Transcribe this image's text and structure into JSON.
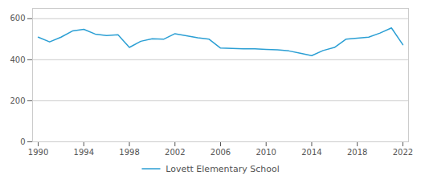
{
  "chart_data": {
    "type": "line",
    "x": [
      1990,
      1991,
      1992,
      1993,
      1994,
      1995,
      1996,
      1997,
      1998,
      1999,
      2000,
      2001,
      2002,
      2003,
      2004,
      2005,
      2006,
      2007,
      2008,
      2009,
      2010,
      2011,
      2012,
      2013,
      2014,
      2015,
      2016,
      2017,
      2018,
      2019,
      2020,
      2021,
      2022
    ],
    "series": [
      {
        "name": "Lovett Elementary School",
        "color": "#2b9fd4",
        "values": [
          510,
          487,
          510,
          540,
          548,
          525,
          518,
          522,
          460,
          490,
          502,
          500,
          527,
          517,
          507,
          500,
          457,
          455,
          453,
          453,
          450,
          448,
          443,
          432,
          420,
          445,
          460,
          500,
          505,
          510,
          530,
          555,
          473
        ]
      }
    ],
    "xlim": [
      1989.5,
      2022.5
    ],
    "ylim": [
      0,
      650
    ],
    "xticks": [
      1990,
      1994,
      1998,
      2002,
      2006,
      2010,
      2014,
      2018,
      2022
    ],
    "yticks": [
      0,
      200,
      400,
      600
    ],
    "grid": true,
    "legend": "bottom"
  }
}
